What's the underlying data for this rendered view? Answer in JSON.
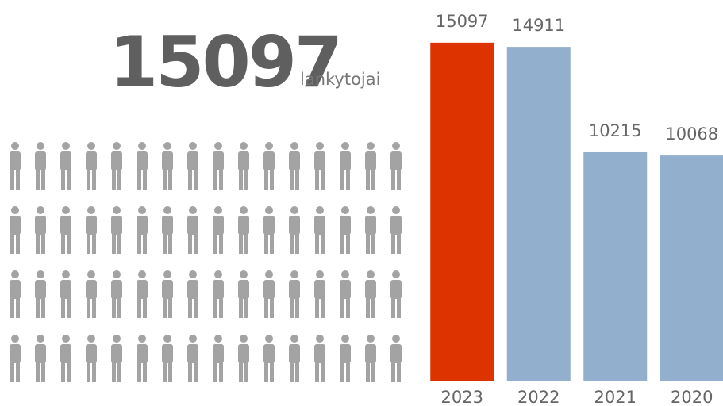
{
  "chart_data": {
    "type": "bar",
    "headline_label": "lankytojai",
    "categories": [
      "2023",
      "2022",
      "2021",
      "2020"
    ],
    "values": [
      15097,
      14911,
      10215,
      10068
    ],
    "colors": [
      "#dd3300",
      "#92afce",
      "#92afce",
      "#92afce"
    ],
    "ylim": [
      0,
      17000
    ]
  }
}
